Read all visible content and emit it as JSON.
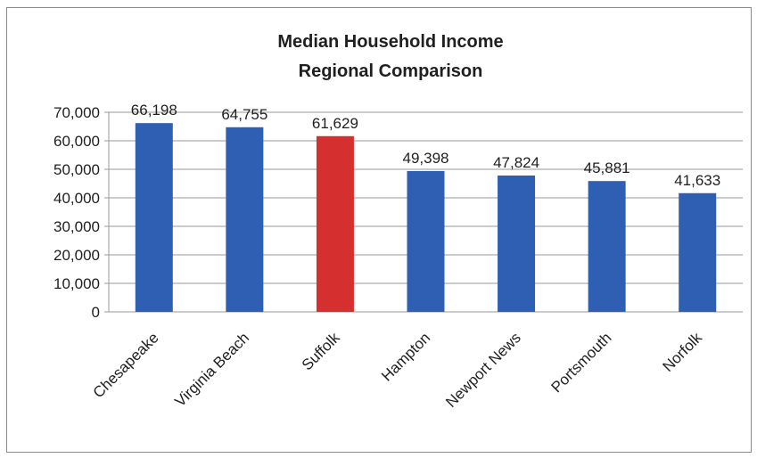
{
  "chart_data": {
    "type": "bar",
    "title": "Median Household Income",
    "subtitle": "Regional Comparison",
    "categories": [
      "Chesapeake",
      "Virginia Beach",
      "Suffolk",
      "Hampton",
      "Newport News",
      "Portsmouth",
      "Norfolk"
    ],
    "values": [
      66198,
      64755,
      61629,
      49398,
      47824,
      45881,
      41633
    ],
    "data_labels": [
      "66,198",
      "64,755",
      "61,629",
      "49,398",
      "47,824",
      "45,881",
      "41,633"
    ],
    "yticks": [
      "0",
      "10,000",
      "20,000",
      "30,000",
      "40,000",
      "50,000",
      "60,000",
      "70,000"
    ],
    "ylim": [
      0,
      70000
    ],
    "grid": true,
    "legend": "none",
    "colors": {
      "bar": "#2e5fb3",
      "highlight": "#d62f30",
      "highlight_index": 2,
      "grid": "#9a9a9a"
    }
  }
}
